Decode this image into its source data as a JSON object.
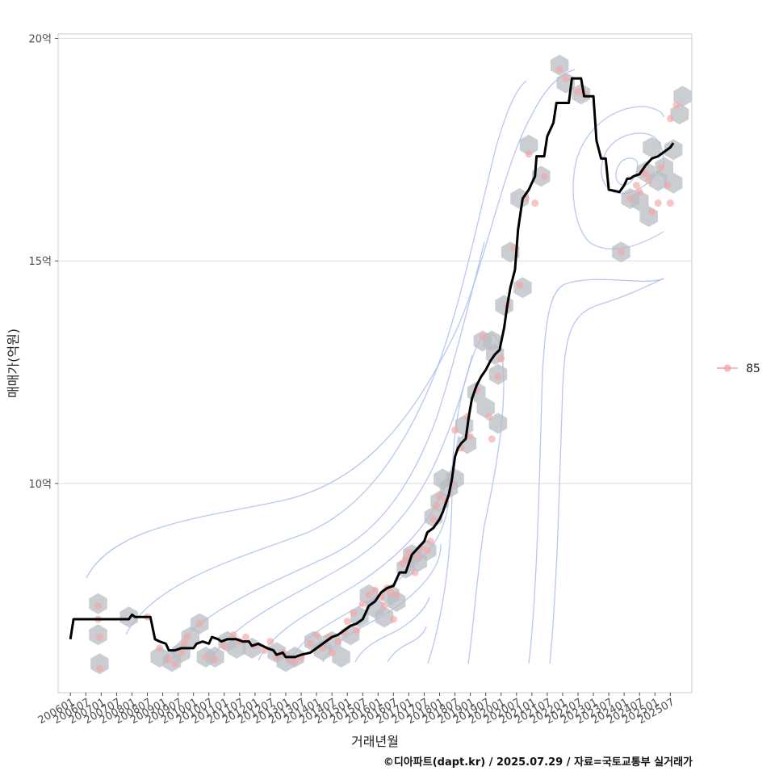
{
  "chart_data": {
    "type": "line",
    "xlabel": "거래년월",
    "ylabel": "매매가(억원)",
    "caption": "©디아파트(dapt.kr) / 2025.07.29 / 자료=국토교통부 실거래가",
    "x_ticks": [
      "200601",
      "200607",
      "200701",
      "200707",
      "200801",
      "200807",
      "200901",
      "200907",
      "201001",
      "201007",
      "201101",
      "201107",
      "201201",
      "201207",
      "201301",
      "201307",
      "201401",
      "201407",
      "201501",
      "201507",
      "201601",
      "201607",
      "201701",
      "201707",
      "201801",
      "201807",
      "201901",
      "201907",
      "202001",
      "202007",
      "202101",
      "202107",
      "202201",
      "202207",
      "202301",
      "202307",
      "202401",
      "202407",
      "202501",
      "202507"
    ],
    "y_ticks": [
      {
        "value": 10,
        "label": "10억"
      },
      {
        "value": 15,
        "label": "15억"
      },
      {
        "value": 20,
        "label": "20억"
      }
    ],
    "xlim": [
      2005.6,
      2026.2
    ],
    "ylim": [
      5.3,
      20.1
    ],
    "grid": "horizontal",
    "legend": {
      "position": "right",
      "entries": [
        {
          "label": "85",
          "color": "#f4a6a6"
        }
      ]
    },
    "colors": {
      "trend_line": "#000000",
      "points": "#f4a6a6",
      "hexbins": "#b8bec4",
      "contours": "#a9bdf0",
      "grid": "#dcdcdc",
      "panel_border": "#cccccc"
    },
    "series": [
      {
        "kind": "trend",
        "points": [
          [
            2006.0,
            6.5
          ],
          [
            2006.1,
            6.95
          ],
          [
            2006.5,
            6.95
          ],
          [
            2007.0,
            6.95
          ],
          [
            2007.5,
            6.95
          ],
          [
            2007.9,
            6.95
          ],
          [
            2008.0,
            7.05
          ],
          [
            2008.1,
            7.0
          ],
          [
            2008.6,
            7.0
          ],
          [
            2008.75,
            6.5
          ],
          [
            2008.9,
            6.45
          ],
          [
            2009.1,
            6.4
          ],
          [
            2009.2,
            6.25
          ],
          [
            2009.4,
            6.25
          ],
          [
            2009.6,
            6.3
          ],
          [
            2009.8,
            6.3
          ],
          [
            2010.0,
            6.3
          ],
          [
            2010.1,
            6.4
          ],
          [
            2010.3,
            6.45
          ],
          [
            2010.5,
            6.4
          ],
          [
            2010.6,
            6.55
          ],
          [
            2010.8,
            6.5
          ],
          [
            2010.9,
            6.45
          ],
          [
            2011.1,
            6.5
          ],
          [
            2011.4,
            6.5
          ],
          [
            2011.6,
            6.45
          ],
          [
            2011.8,
            6.45
          ],
          [
            2011.9,
            6.35
          ],
          [
            2012.1,
            6.4
          ],
          [
            2012.4,
            6.3
          ],
          [
            2012.6,
            6.25
          ],
          [
            2012.7,
            6.15
          ],
          [
            2012.9,
            6.2
          ],
          [
            2013.0,
            6.1
          ],
          [
            2013.3,
            6.1
          ],
          [
            2013.5,
            6.15
          ],
          [
            2013.8,
            6.2
          ],
          [
            2014.0,
            6.3
          ],
          [
            2014.3,
            6.45
          ],
          [
            2014.5,
            6.55
          ],
          [
            2014.7,
            6.6
          ],
          [
            2014.9,
            6.7
          ],
          [
            2015.1,
            6.8
          ],
          [
            2015.3,
            6.85
          ],
          [
            2015.5,
            6.95
          ],
          [
            2015.6,
            7.1
          ],
          [
            2015.7,
            7.25
          ],
          [
            2015.9,
            7.35
          ],
          [
            2016.1,
            7.55
          ],
          [
            2016.3,
            7.65
          ],
          [
            2016.5,
            7.7
          ],
          [
            2016.6,
            7.85
          ],
          [
            2016.7,
            8.0
          ],
          [
            2016.9,
            8.0
          ],
          [
            2017.1,
            8.4
          ],
          [
            2017.3,
            8.55
          ],
          [
            2017.5,
            8.7
          ],
          [
            2017.6,
            8.9
          ],
          [
            2017.8,
            9.0
          ],
          [
            2018.0,
            9.2
          ],
          [
            2018.1,
            9.35
          ],
          [
            2018.3,
            9.75
          ],
          [
            2018.4,
            10.1
          ],
          [
            2018.5,
            10.6
          ],
          [
            2018.6,
            10.8
          ],
          [
            2018.7,
            10.9
          ],
          [
            2018.85,
            11.0
          ],
          [
            2018.95,
            11.5
          ],
          [
            2019.05,
            11.9
          ],
          [
            2019.2,
            12.2
          ],
          [
            2019.35,
            12.4
          ],
          [
            2019.5,
            12.55
          ],
          [
            2019.65,
            12.75
          ],
          [
            2019.8,
            12.9
          ],
          [
            2019.95,
            13.0
          ],
          [
            2020.1,
            13.5
          ],
          [
            2020.2,
            14.0
          ],
          [
            2020.3,
            14.4
          ],
          [
            2020.45,
            14.8
          ],
          [
            2020.55,
            15.7
          ],
          [
            2020.7,
            16.4
          ],
          [
            2020.9,
            16.6
          ],
          [
            2021.1,
            16.9
          ],
          [
            2021.15,
            17.35
          ],
          [
            2021.4,
            17.35
          ],
          [
            2021.5,
            17.8
          ],
          [
            2021.7,
            18.1
          ],
          [
            2021.8,
            18.55
          ],
          [
            2022.2,
            18.55
          ],
          [
            2022.3,
            19.1
          ],
          [
            2022.6,
            19.1
          ],
          [
            2022.7,
            18.7
          ],
          [
            2023.0,
            18.7
          ],
          [
            2023.1,
            17.7
          ],
          [
            2023.25,
            17.3
          ],
          [
            2023.4,
            17.3
          ],
          [
            2023.5,
            16.6
          ],
          [
            2023.85,
            16.55
          ],
          [
            2024.0,
            16.7
          ],
          [
            2024.1,
            16.85
          ],
          [
            2024.2,
            16.85
          ],
          [
            2024.3,
            16.9
          ],
          [
            2024.5,
            16.95
          ],
          [
            2024.7,
            17.15
          ],
          [
            2024.9,
            17.3
          ],
          [
            2025.1,
            17.35
          ],
          [
            2025.3,
            17.45
          ],
          [
            2025.5,
            17.55
          ],
          [
            2025.6,
            17.65
          ]
        ]
      },
      {
        "name": "85",
        "kind": "scatter",
        "points": [
          [
            2006.9,
            7.25
          ],
          [
            2006.9,
            6.95
          ],
          [
            2006.95,
            6.55
          ],
          [
            2006.95,
            5.85
          ],
          [
            2008.5,
            7.0
          ],
          [
            2008.9,
            6.3
          ],
          [
            2009.2,
            6.05
          ],
          [
            2009.4,
            5.95
          ],
          [
            2009.6,
            6.2
          ],
          [
            2009.7,
            6.4
          ],
          [
            2009.8,
            6.55
          ],
          [
            2010.2,
            6.85
          ],
          [
            2010.4,
            6.1
          ],
          [
            2010.7,
            6.05
          ],
          [
            2011.0,
            6.35
          ],
          [
            2011.3,
            6.6
          ],
          [
            2011.5,
            6.45
          ],
          [
            2011.7,
            6.55
          ],
          [
            2012.0,
            6.35
          ],
          [
            2012.3,
            6.25
          ],
          [
            2012.5,
            6.45
          ],
          [
            2012.7,
            6.1
          ],
          [
            2012.9,
            6.2
          ],
          [
            2013.1,
            6.05
          ],
          [
            2013.3,
            6.0
          ],
          [
            2013.5,
            6.1
          ],
          [
            2013.8,
            6.4
          ],
          [
            2014.0,
            6.6
          ],
          [
            2014.2,
            6.3
          ],
          [
            2014.4,
            6.55
          ],
          [
            2014.5,
            6.2
          ],
          [
            2014.7,
            6.45
          ],
          [
            2014.9,
            6.65
          ],
          [
            2015.0,
            6.9
          ],
          [
            2015.2,
            7.1
          ],
          [
            2015.3,
            6.7
          ],
          [
            2015.5,
            7.3
          ],
          [
            2015.7,
            7.5
          ],
          [
            2015.9,
            7.6
          ],
          [
            2016.1,
            7.45
          ],
          [
            2016.2,
            7.25
          ],
          [
            2016.3,
            7.65
          ],
          [
            2016.4,
            7.55
          ],
          [
            2016.5,
            6.95
          ],
          [
            2016.6,
            7.5
          ],
          [
            2016.8,
            8.2
          ],
          [
            2016.9,
            8.3
          ],
          [
            2017.0,
            8.45
          ],
          [
            2017.2,
            8.0
          ],
          [
            2017.3,
            8.35
          ],
          [
            2017.4,
            8.55
          ],
          [
            2017.6,
            8.5
          ],
          [
            2017.7,
            8.7
          ],
          [
            2017.8,
            9.2
          ],
          [
            2017.9,
            9.5
          ],
          [
            2018.0,
            9.7
          ],
          [
            2018.2,
            9.6
          ],
          [
            2018.4,
            10.0
          ],
          [
            2018.5,
            11.2
          ],
          [
            2018.7,
            10.8
          ],
          [
            2018.9,
            11.5
          ],
          [
            2019.0,
            11.05
          ],
          [
            2019.2,
            12.1
          ],
          [
            2019.4,
            13.3
          ],
          [
            2019.6,
            11.5
          ],
          [
            2019.7,
            11.0
          ],
          [
            2019.9,
            12.4
          ],
          [
            2020.0,
            12.8
          ],
          [
            2020.2,
            14.0
          ],
          [
            2020.4,
            15.3
          ],
          [
            2020.6,
            14.45
          ],
          [
            2020.8,
            16.4
          ],
          [
            2020.9,
            17.4
          ],
          [
            2021.1,
            16.3
          ],
          [
            2021.4,
            16.9
          ],
          [
            2021.9,
            19.3
          ],
          [
            2022.1,
            19.1
          ],
          [
            2022.5,
            18.8
          ],
          [
            2022.7,
            18.75
          ],
          [
            2023.9,
            15.2
          ],
          [
            2024.2,
            16.4
          ],
          [
            2024.4,
            16.7
          ],
          [
            2024.5,
            16.55
          ],
          [
            2024.6,
            17.0
          ],
          [
            2024.7,
            16.95
          ],
          [
            2024.8,
            16.8
          ],
          [
            2024.9,
            16.1
          ],
          [
            2025.1,
            16.3
          ],
          [
            2025.2,
            17.1
          ],
          [
            2025.4,
            16.7
          ],
          [
            2025.5,
            16.3
          ],
          [
            2025.5,
            18.2
          ],
          [
            2025.7,
            18.5
          ]
        ]
      },
      {
        "kind": "hexbin",
        "points": [
          [
            2006.9,
            7.3
          ],
          [
            2006.9,
            6.6
          ],
          [
            2006.95,
            5.95
          ],
          [
            2007.9,
            7.0
          ],
          [
            2008.9,
            6.1
          ],
          [
            2009.3,
            6.0
          ],
          [
            2009.6,
            6.2
          ],
          [
            2009.9,
            6.55
          ],
          [
            2010.2,
            6.85
          ],
          [
            2010.4,
            6.1
          ],
          [
            2010.7,
            6.1
          ],
          [
            2011.1,
            6.45
          ],
          [
            2011.4,
            6.3
          ],
          [
            2011.9,
            6.3
          ],
          [
            2012.7,
            6.2
          ],
          [
            2013.0,
            6.0
          ],
          [
            2013.3,
            6.1
          ],
          [
            2013.9,
            6.45
          ],
          [
            2014.2,
            6.25
          ],
          [
            2014.5,
            6.45
          ],
          [
            2014.8,
            6.1
          ],
          [
            2015.1,
            6.6
          ],
          [
            2015.4,
            7.0
          ],
          [
            2015.7,
            7.5
          ],
          [
            2015.9,
            7.2
          ],
          [
            2016.2,
            7.0
          ],
          [
            2016.4,
            7.5
          ],
          [
            2016.6,
            7.35
          ],
          [
            2016.9,
            8.1
          ],
          [
            2017.1,
            8.4
          ],
          [
            2017.3,
            8.25
          ],
          [
            2017.6,
            8.5
          ],
          [
            2017.8,
            9.25
          ],
          [
            2018.0,
            9.6
          ],
          [
            2018.1,
            10.1
          ],
          [
            2018.3,
            9.9
          ],
          [
            2018.5,
            10.1
          ],
          [
            2018.8,
            11.3
          ],
          [
            2018.9,
            10.9
          ],
          [
            2019.2,
            12.05
          ],
          [
            2019.4,
            13.2
          ],
          [
            2019.5,
            11.7
          ],
          [
            2019.7,
            13.2
          ],
          [
            2019.8,
            12.9
          ],
          [
            2019.9,
            12.45
          ],
          [
            2019.9,
            11.35
          ],
          [
            2020.1,
            14.0
          ],
          [
            2020.3,
            15.2
          ],
          [
            2020.6,
            16.4
          ],
          [
            2020.7,
            14.4
          ],
          [
            2020.9,
            17.6
          ],
          [
            2021.3,
            16.9
          ],
          [
            2021.9,
            19.4
          ],
          [
            2022.1,
            19.0
          ],
          [
            2022.6,
            18.75
          ],
          [
            2023.9,
            15.2
          ],
          [
            2024.2,
            16.4
          ],
          [
            2024.5,
            16.35
          ],
          [
            2024.7,
            17.0
          ],
          [
            2024.8,
            16.0
          ],
          [
            2024.9,
            17.55
          ],
          [
            2025.1,
            16.8
          ],
          [
            2025.3,
            17.1
          ],
          [
            2025.6,
            16.75
          ],
          [
            2025.6,
            17.5
          ],
          [
            2025.8,
            18.3
          ],
          [
            2025.9,
            18.7
          ]
        ]
      }
    ]
  }
}
